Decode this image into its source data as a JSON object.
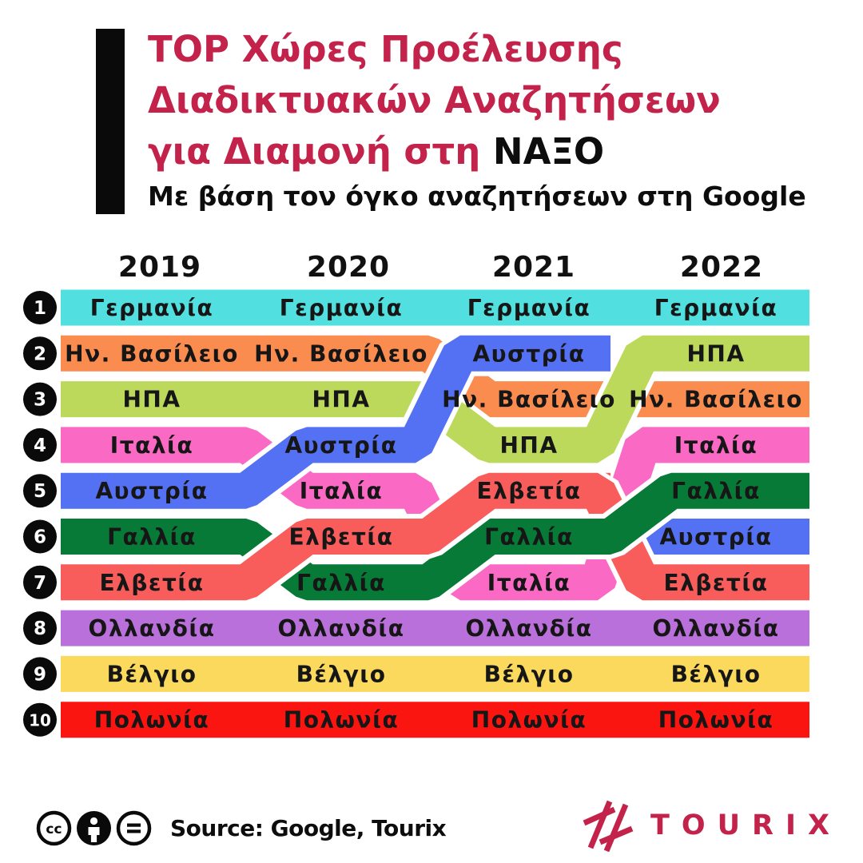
{
  "title": {
    "line1": "TOP Χώρες Προέλευσης",
    "line2": "Διαδικτυακών Αναζητήσεων",
    "line3_red": "για Διαμονή στη",
    "line3_black": "ΝΑΞΟ",
    "subtitle": "Με βάση τον όγκο αναζητήσεων στη Google"
  },
  "chart_data": {
    "type": "bump",
    "years": [
      "2019",
      "2020",
      "2021",
      "2022"
    ],
    "ranks": [
      "1",
      "2",
      "3",
      "4",
      "5",
      "6",
      "7",
      "8",
      "9",
      "10"
    ],
    "countries": [
      {
        "name": "Γερμανία",
        "color": "#52DFE0",
        "ranks": [
          1,
          1,
          1,
          1
        ]
      },
      {
        "name": "Ην. Βασίλειο",
        "color": "#F98C4E",
        "ranks": [
          2,
          2,
          3,
          3
        ]
      },
      {
        "name": "ΗΠΑ",
        "color": "#BDD95C",
        "ranks": [
          3,
          3,
          4,
          2
        ]
      },
      {
        "name": "Ιταλία",
        "color": "#FA6AC5",
        "ranks": [
          4,
          5,
          7,
          4
        ]
      },
      {
        "name": "Αυστρία",
        "color": "#5571F3",
        "ranks": [
          5,
          4,
          2,
          6
        ]
      },
      {
        "name": "Γαλλία",
        "color": "#087A37",
        "ranks": [
          6,
          7,
          6,
          5
        ]
      },
      {
        "name": "Ελβετία",
        "color": "#F85D5C",
        "ranks": [
          7,
          6,
          5,
          7
        ]
      },
      {
        "name": "Ολλανδία",
        "color": "#BA70DB",
        "ranks": [
          8,
          8,
          8,
          8
        ]
      },
      {
        "name": "Βέλγιο",
        "color": "#FBD95C",
        "ranks": [
          9,
          9,
          9,
          9
        ]
      },
      {
        "name": "Πολωνία",
        "color": "#FA1510",
        "ranks": [
          10,
          10,
          10,
          10
        ]
      }
    ],
    "rank_badge_color": "#0a0a0a",
    "rank_number_color": "#ffffff",
    "label_color": "#161616",
    "header_color": "#111111"
  },
  "footer": {
    "source": "Source: Google, Tourix",
    "license_icons": [
      "cc-icon",
      "attribution-person-icon",
      "equals-icon"
    ],
    "logo_text": "TOURIX"
  },
  "colors": {
    "accent": "#C3234A",
    "text": "#0d0d0d"
  }
}
